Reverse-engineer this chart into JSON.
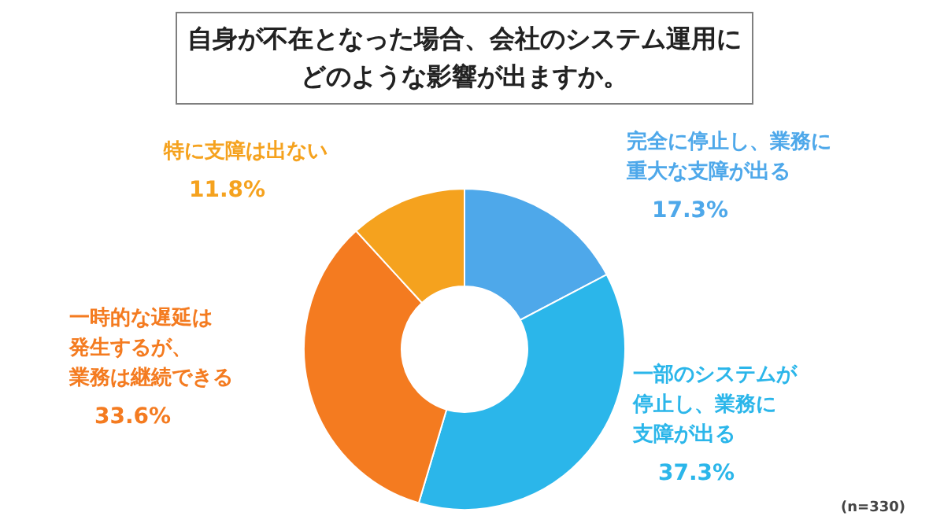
{
  "chart_data": {
    "type": "donut",
    "title": "自身が不在となった場合、会社のシステム運用にどのような影響が出ますか。",
    "categories": [
      "完全に停止し、業務に重大な支障が出る",
      "一部のシステムが停止し、業務に支障が出る",
      "一時的な遅延は発生するが、業務は継続できる",
      "特に支障は出ない"
    ],
    "values": [
      17.3,
      37.3,
      33.6,
      11.8
    ],
    "value_labels": [
      "17.3%",
      "37.3%",
      "33.6%",
      "11.8%"
    ],
    "colors": [
      "#4ea8ea",
      "#2bb6ea",
      "#f47b20",
      "#f5a21e"
    ],
    "annotations": [
      "(n=330)"
    ]
  }
}
